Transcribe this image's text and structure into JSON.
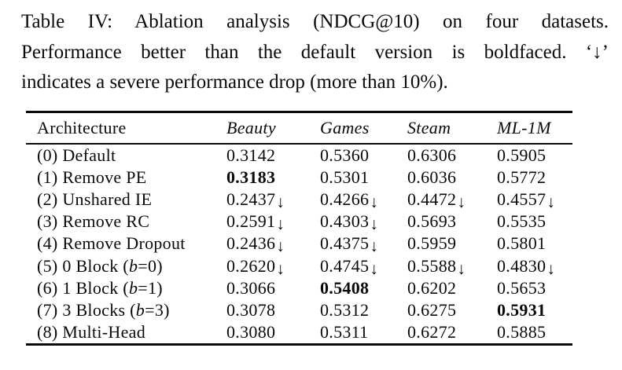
{
  "caption": {
    "line1": "Table IV: Ablation analysis (NDCG@10) on four datasets.",
    "line2": "Performance better than the default version is boldfaced. ‘↓’",
    "line3": "indicates a severe performance drop (more than 10%)."
  },
  "table": {
    "columns": [
      "Architecture",
      "Beauty",
      "Games",
      "Steam",
      "ML-1M"
    ],
    "drop_symbol": "↓",
    "rows": [
      {
        "label": [
          {
            "t": "(0) Default"
          }
        ],
        "cells": [
          {
            "v": "0.3142"
          },
          {
            "v": "0.5360"
          },
          {
            "v": "0.6306"
          },
          {
            "v": "0.5905"
          }
        ]
      },
      {
        "label": [
          {
            "t": "(1) Remove PE"
          }
        ],
        "cells": [
          {
            "v": "0.3183",
            "bold": true
          },
          {
            "v": "0.5301"
          },
          {
            "v": "0.6036"
          },
          {
            "v": "0.5772"
          }
        ]
      },
      {
        "label": [
          {
            "t": "(2) Unshared IE"
          }
        ],
        "cells": [
          {
            "v": "0.2437",
            "drop": true
          },
          {
            "v": "0.4266",
            "drop": true
          },
          {
            "v": "0.4472",
            "drop": true
          },
          {
            "v": "0.4557",
            "drop": true
          }
        ]
      },
      {
        "label": [
          {
            "t": "(3) Remove RC"
          }
        ],
        "cells": [
          {
            "v": "0.2591",
            "drop": true
          },
          {
            "v": "0.4303",
            "drop": true
          },
          {
            "v": "0.5693"
          },
          {
            "v": "0.5535"
          }
        ]
      },
      {
        "label": [
          {
            "t": "(4) Remove Dropout"
          }
        ],
        "cells": [
          {
            "v": "0.2436",
            "drop": true
          },
          {
            "v": "0.4375",
            "drop": true
          },
          {
            "v": "0.5959"
          },
          {
            "v": "0.5801"
          }
        ]
      },
      {
        "label": [
          {
            "t": "(5) 0 Block ("
          },
          {
            "t": "b",
            "i": true
          },
          {
            "t": "=0)"
          }
        ],
        "cells": [
          {
            "v": "0.2620",
            "drop": true
          },
          {
            "v": "0.4745",
            "drop": true
          },
          {
            "v": "0.5588",
            "drop": true
          },
          {
            "v": "0.4830",
            "drop": true
          }
        ]
      },
      {
        "label": [
          {
            "t": "(6) 1 Block ("
          },
          {
            "t": "b",
            "i": true
          },
          {
            "t": "=1)"
          }
        ],
        "cells": [
          {
            "v": "0.3066"
          },
          {
            "v": "0.5408",
            "bold": true
          },
          {
            "v": "0.6202"
          },
          {
            "v": "0.5653"
          }
        ]
      },
      {
        "label": [
          {
            "t": "(7) 3 Blocks ("
          },
          {
            "t": "b",
            "i": true
          },
          {
            "t": "=3)"
          }
        ],
        "cells": [
          {
            "v": "0.3078"
          },
          {
            "v": "0.5312"
          },
          {
            "v": "0.6275"
          },
          {
            "v": "0.5931",
            "bold": true
          }
        ]
      },
      {
        "label": [
          {
            "t": "(8) Multi-Head"
          }
        ],
        "cells": [
          {
            "v": "0.3080"
          },
          {
            "v": "0.5311"
          },
          {
            "v": "0.6272"
          },
          {
            "v": "0.5885"
          }
        ]
      }
    ]
  },
  "colors": {
    "text": "#0a0a0a",
    "background": "#ffffff"
  }
}
